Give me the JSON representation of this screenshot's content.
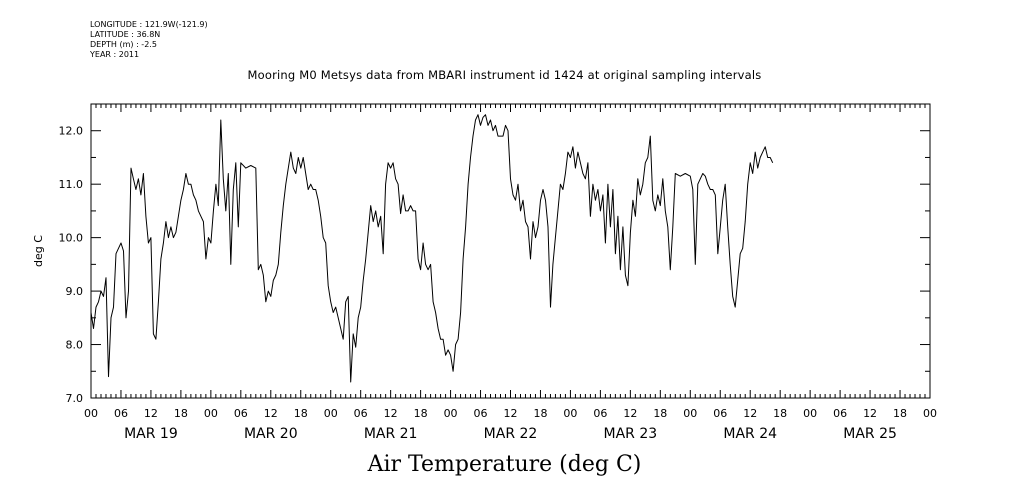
{
  "header": {
    "longitude": "LONGITUDE : 121.9W(-121.9)",
    "latitude": "LATITUDE : 36.8N",
    "depth": "DEPTH (m) : -2.5",
    "year": "YEAR : 2011"
  },
  "chart_data": {
    "type": "line",
    "title": "Mooring M0 Metsys data from MBARI instrument id 1424 at original sampling intervals",
    "xlabel": "Air Temperature (deg C)",
    "ylabel": "deg C",
    "ylim": [
      7.0,
      12.5
    ],
    "yticks": [
      7.0,
      8.0,
      9.0,
      10.0,
      11.0,
      12.0
    ],
    "ytick_labels": [
      "7.0",
      "8.0",
      "9.0",
      "10.0",
      "11.0",
      "12.0"
    ],
    "xlim_hours": [
      0,
      168
    ],
    "hour_tick_labels": [
      "00",
      "06",
      "12",
      "18",
      "00",
      "06",
      "12",
      "18",
      "00",
      "06",
      "12",
      "18",
      "00",
      "06",
      "12",
      "18",
      "00",
      "06",
      "12",
      "18",
      "00",
      "06",
      "12",
      "18",
      "00",
      "06",
      "12",
      "18",
      "00"
    ],
    "day_labels": [
      "MAR 19",
      "MAR 20",
      "MAR 21",
      "MAR 22",
      "MAR 23",
      "MAR 24",
      "MAR 25"
    ],
    "grid": false,
    "series": [
      {
        "color": "#000000",
        "points": [
          [
            0,
            8.6
          ],
          [
            0.5,
            8.3
          ],
          [
            1,
            8.7
          ],
          [
            1.5,
            8.8
          ],
          [
            2,
            9.0
          ],
          [
            2.5,
            8.9
          ],
          [
            3,
            9.25
          ],
          [
            3.5,
            7.4
          ],
          [
            4,
            8.5
          ],
          [
            4.5,
            8.7
          ],
          [
            5,
            9.7
          ],
          [
            5.5,
            9.8
          ],
          [
            6,
            9.9
          ],
          [
            6.5,
            9.75
          ],
          [
            7,
            8.5
          ],
          [
            7.5,
            9.0
          ],
          [
            8,
            11.3
          ],
          [
            8.5,
            11.1
          ],
          [
            9,
            10.9
          ],
          [
            9.5,
            11.1
          ],
          [
            10,
            10.8
          ],
          [
            10.5,
            11.2
          ],
          [
            11,
            10.4
          ],
          [
            11.5,
            9.9
          ],
          [
            12,
            10.0
          ],
          [
            12.5,
            8.2
          ],
          [
            13,
            8.1
          ],
          [
            13.5,
            8.8
          ],
          [
            14,
            9.6
          ],
          [
            14.5,
            9.9
          ],
          [
            15,
            10.3
          ],
          [
            15.5,
            10.0
          ],
          [
            16,
            10.2
          ],
          [
            16.5,
            10.0
          ],
          [
            17,
            10.1
          ],
          [
            18,
            10.7
          ],
          [
            18.5,
            10.9
          ],
          [
            19,
            11.2
          ],
          [
            19.5,
            11.0
          ],
          [
            20,
            11.0
          ],
          [
            20.5,
            10.8
          ],
          [
            21,
            10.7
          ],
          [
            21.5,
            10.5
          ],
          [
            22,
            10.4
          ],
          [
            22.5,
            10.3
          ],
          [
            23,
            9.6
          ],
          [
            23.5,
            10.0
          ],
          [
            24,
            9.9
          ],
          [
            24.5,
            10.5
          ],
          [
            25,
            11.0
          ],
          [
            25.5,
            10.6
          ],
          [
            26,
            12.2
          ],
          [
            26.5,
            11.1
          ],
          [
            27,
            10.5
          ],
          [
            27.5,
            11.2
          ],
          [
            28,
            9.5
          ],
          [
            28.5,
            10.9
          ],
          [
            29,
            11.4
          ],
          [
            29.5,
            10.2
          ],
          [
            30,
            11.4
          ],
          [
            31,
            11.3
          ],
          [
            32,
            11.35
          ],
          [
            33,
            11.3
          ],
          [
            33.5,
            9.4
          ],
          [
            34,
            9.5
          ],
          [
            34.5,
            9.3
          ],
          [
            35,
            8.8
          ],
          [
            35.5,
            9.0
          ],
          [
            36,
            8.9
          ],
          [
            36.5,
            9.2
          ],
          [
            37,
            9.3
          ],
          [
            37.5,
            9.5
          ],
          [
            38,
            10.1
          ],
          [
            38.5,
            10.6
          ],
          [
            39,
            11.0
          ],
          [
            39.5,
            11.3
          ],
          [
            40,
            11.6
          ],
          [
            40.5,
            11.3
          ],
          [
            41,
            11.2
          ],
          [
            41.5,
            11.5
          ],
          [
            42,
            11.3
          ],
          [
            42.5,
            11.5
          ],
          [
            43,
            11.2
          ],
          [
            43.5,
            10.9
          ],
          [
            44,
            11.0
          ],
          [
            44.5,
            10.9
          ],
          [
            45,
            10.9
          ],
          [
            45.5,
            10.7
          ],
          [
            46,
            10.4
          ],
          [
            46.5,
            10.0
          ],
          [
            47,
            9.9
          ],
          [
            47.5,
            9.1
          ],
          [
            48,
            8.8
          ],
          [
            48.5,
            8.6
          ],
          [
            49,
            8.7
          ],
          [
            49.5,
            8.5
          ],
          [
            50,
            8.3
          ],
          [
            50.5,
            8.1
          ],
          [
            51,
            8.8
          ],
          [
            51.5,
            8.9
          ],
          [
            52,
            7.3
          ],
          [
            52.5,
            8.2
          ],
          [
            53,
            7.95
          ],
          [
            53.5,
            8.5
          ],
          [
            54,
            8.7
          ],
          [
            54.5,
            9.2
          ],
          [
            55,
            9.6
          ],
          [
            55.5,
            10.1
          ],
          [
            56,
            10.6
          ],
          [
            56.5,
            10.3
          ],
          [
            57,
            10.5
          ],
          [
            57.5,
            10.2
          ],
          [
            58,
            10.4
          ],
          [
            58.5,
            9.7
          ],
          [
            59,
            11.0
          ],
          [
            59.5,
            11.4
          ],
          [
            60,
            11.3
          ],
          [
            60.5,
            11.4
          ],
          [
            61,
            11.1
          ],
          [
            61.5,
            11.0
          ],
          [
            62,
            10.45
          ],
          [
            62.5,
            10.8
          ],
          [
            63,
            10.5
          ],
          [
            63.5,
            10.5
          ],
          [
            64,
            10.6
          ],
          [
            64.5,
            10.5
          ],
          [
            65,
            10.5
          ],
          [
            65.5,
            9.6
          ],
          [
            66,
            9.4
          ],
          [
            66.5,
            9.9
          ],
          [
            67,
            9.5
          ],
          [
            67.5,
            9.4
          ],
          [
            68,
            9.5
          ],
          [
            68.5,
            8.8
          ],
          [
            69,
            8.6
          ],
          [
            69.5,
            8.3
          ],
          [
            70,
            8.1
          ],
          [
            70.5,
            8.1
          ],
          [
            71,
            7.8
          ],
          [
            71.5,
            7.9
          ],
          [
            72,
            7.8
          ],
          [
            72.5,
            7.5
          ],
          [
            73,
            8.0
          ],
          [
            73.5,
            8.1
          ],
          [
            74,
            8.6
          ],
          [
            74.5,
            9.6
          ],
          [
            75,
            10.2
          ],
          [
            75.5,
            11.0
          ],
          [
            76,
            11.5
          ],
          [
            76.5,
            11.9
          ],
          [
            77,
            12.2
          ],
          [
            77.5,
            12.3
          ],
          [
            78,
            12.1
          ],
          [
            78.5,
            12.25
          ],
          [
            79,
            12.3
          ],
          [
            79.5,
            12.1
          ],
          [
            80,
            12.2
          ],
          [
            80.5,
            12.0
          ],
          [
            81,
            12.1
          ],
          [
            81.5,
            11.9
          ],
          [
            82,
            11.9
          ],
          [
            82.5,
            11.9
          ],
          [
            83,
            12.1
          ],
          [
            83.5,
            12.0
          ],
          [
            84,
            11.1
          ],
          [
            84.5,
            10.8
          ],
          [
            85,
            10.7
          ],
          [
            85.5,
            11.0
          ],
          [
            86,
            10.5
          ],
          [
            86.5,
            10.7
          ],
          [
            87,
            10.3
          ],
          [
            87.5,
            10.2
          ],
          [
            88,
            9.6
          ],
          [
            88.5,
            10.3
          ],
          [
            89,
            10.0
          ],
          [
            89.5,
            10.2
          ],
          [
            90,
            10.7
          ],
          [
            90.5,
            10.9
          ],
          [
            91,
            10.7
          ],
          [
            91.5,
            10.2
          ],
          [
            92,
            8.7
          ],
          [
            92.5,
            9.5
          ],
          [
            93,
            10.0
          ],
          [
            93.5,
            10.5
          ],
          [
            94,
            11.0
          ],
          [
            94.5,
            10.9
          ],
          [
            95,
            11.2
          ],
          [
            95.5,
            11.6
          ],
          [
            96,
            11.5
          ],
          [
            96.5,
            11.7
          ],
          [
            97,
            11.3
          ],
          [
            97.5,
            11.6
          ],
          [
            98,
            11.4
          ],
          [
            98.5,
            11.2
          ],
          [
            99,
            11.1
          ],
          [
            99.5,
            11.4
          ],
          [
            100,
            10.4
          ],
          [
            100.5,
            11.0
          ],
          [
            101,
            10.7
          ],
          [
            101.5,
            10.9
          ],
          [
            102,
            10.5
          ],
          [
            102.5,
            10.8
          ],
          [
            103,
            9.9
          ],
          [
            103.5,
            11.0
          ],
          [
            104,
            10.2
          ],
          [
            104.5,
            10.9
          ],
          [
            105,
            9.7
          ],
          [
            105.5,
            10.4
          ],
          [
            106,
            9.4
          ],
          [
            106.5,
            10.2
          ],
          [
            107,
            9.3
          ],
          [
            107.5,
            9.1
          ],
          [
            108,
            10.1
          ],
          [
            108.5,
            10.7
          ],
          [
            109,
            10.4
          ],
          [
            109.5,
            11.1
          ],
          [
            110,
            10.8
          ],
          [
            110.5,
            11.0
          ],
          [
            111,
            11.4
          ],
          [
            111.5,
            11.5
          ],
          [
            112,
            11.9
          ],
          [
            112.5,
            10.7
          ],
          [
            113,
            10.5
          ],
          [
            113.5,
            10.8
          ],
          [
            114,
            10.6
          ],
          [
            114.5,
            11.1
          ],
          [
            115,
            10.5
          ],
          [
            115.5,
            10.2
          ],
          [
            116,
            9.4
          ],
          [
            116.5,
            10.2
          ],
          [
            117,
            11.2
          ],
          [
            118,
            11.15
          ],
          [
            119,
            11.2
          ],
          [
            120,
            11.15
          ],
          [
            120.5,
            10.9
          ],
          [
            121,
            9.5
          ],
          [
            121.5,
            11.0
          ],
          [
            122,
            11.1
          ],
          [
            122.5,
            11.2
          ],
          [
            123,
            11.15
          ],
          [
            123.5,
            11.0
          ],
          [
            124,
            10.9
          ],
          [
            124.5,
            10.9
          ],
          [
            125,
            10.8
          ],
          [
            125.5,
            9.7
          ],
          [
            126,
            10.2
          ],
          [
            126.5,
            10.7
          ],
          [
            127,
            11.0
          ],
          [
            127.5,
            10.2
          ],
          [
            128,
            9.5
          ],
          [
            128.5,
            8.9
          ],
          [
            129,
            8.7
          ],
          [
            129.5,
            9.2
          ],
          [
            130,
            9.7
          ],
          [
            130.5,
            9.8
          ],
          [
            131,
            10.3
          ],
          [
            131.5,
            11.0
          ],
          [
            132,
            11.4
          ],
          [
            132.5,
            11.2
          ],
          [
            133,
            11.6
          ],
          [
            133.5,
            11.3
          ],
          [
            134,
            11.5
          ],
          [
            134.5,
            11.6
          ],
          [
            135,
            11.7
          ],
          [
            135.5,
            11.5
          ],
          [
            136,
            11.5
          ],
          [
            136.5,
            11.4
          ]
        ]
      }
    ]
  }
}
